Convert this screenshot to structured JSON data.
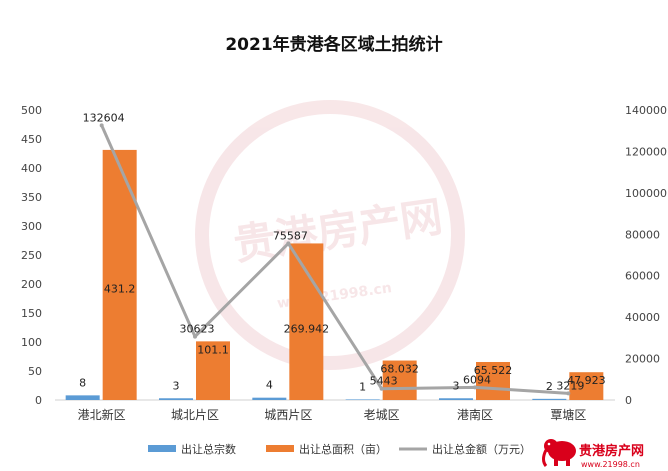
{
  "chart_data": {
    "type": "bar",
    "title": "2021年贵港各区域土拍统计",
    "categories": [
      "港北新区",
      "城北片区",
      "城西片区",
      "老城区",
      "港南区",
      "覃塘区"
    ],
    "series": [
      {
        "name": "出让总宗数",
        "type": "bar",
        "axis": "left",
        "color": "#5b9bd5",
        "values": [
          8,
          3,
          4,
          1,
          3,
          2
        ],
        "labels": [
          "8",
          "3",
          "4",
          "1",
          "3",
          "2"
        ]
      },
      {
        "name": "出让总面积（亩）",
        "type": "bar",
        "axis": "left",
        "color": "#ed7d31",
        "values": [
          431.2,
          101.1,
          269.942,
          68.032,
          65.522,
          47.923
        ],
        "labels": [
          "431.2",
          "101.1",
          "269.942",
          "68.032",
          "65.522",
          "47.923"
        ]
      },
      {
        "name": "出让总金额（万元）",
        "type": "line",
        "axis": "right",
        "color": "#a5a5a5",
        "values": [
          132604,
          30623,
          75587,
          5443,
          6094,
          3219
        ],
        "labels": [
          "132604",
          "30623",
          "75587",
          "5443",
          "6094",
          "3219"
        ]
      }
    ],
    "left_axis": {
      "min": 0,
      "max": 500,
      "step": 50,
      "ticks": [
        "0",
        "50",
        "100",
        "150",
        "200",
        "250",
        "300",
        "350",
        "400",
        "450",
        "500"
      ]
    },
    "right_axis": {
      "min": 0,
      "max": 140000,
      "step": 20000,
      "ticks": [
        "0",
        "20000",
        "40000",
        "60000",
        "80000",
        "100000",
        "120000",
        "140000"
      ]
    },
    "grid": false,
    "legend_position": "bottom"
  },
  "watermark": {
    "text": "贵港房产网",
    "url": "www.21998.cn"
  },
  "brand": {
    "name": "贵港房产网",
    "url": "www.21998.cn"
  },
  "colors": {
    "brand_red": "#d9001b",
    "watermark": "#f2d3d6"
  }
}
